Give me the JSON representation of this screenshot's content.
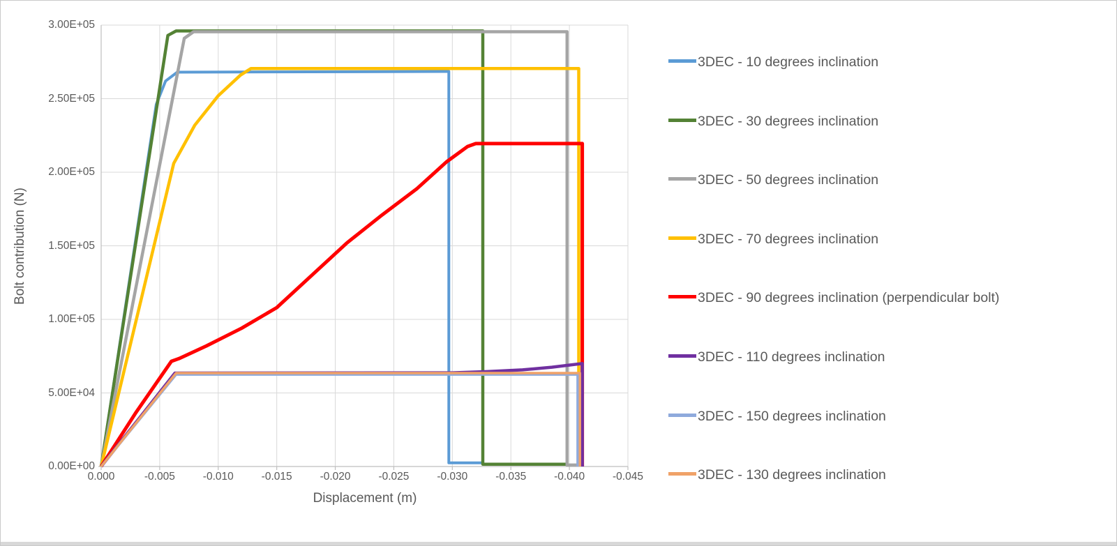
{
  "chart_data": {
    "type": "line",
    "title": "",
    "xlabel": "Displacement (m)",
    "ylabel": "Bolt contribution (N)",
    "xlim": [
      0,
      -0.045
    ],
    "ylim": [
      0,
      300000
    ],
    "grid": true,
    "legend_position": "right",
    "x_ticks": [
      0,
      -0.005,
      -0.01,
      -0.015,
      -0.02,
      -0.025,
      -0.03,
      -0.035,
      -0.04,
      -0.045
    ],
    "x_tick_labels": [
      "0.000",
      "-0.005",
      "-0.010",
      "-0.015",
      "-0.020",
      "-0.025",
      "-0.030",
      "-0.035",
      "-0.040",
      "-0.045"
    ],
    "y_ticks": [
      0,
      50000,
      100000,
      150000,
      200000,
      250000,
      300000
    ],
    "y_tick_labels": [
      "0.00E+00",
      "5.00E+04",
      "1.00E+05",
      "1.50E+05",
      "2.00E+05",
      "2.50E+05",
      "3.00E+05"
    ],
    "colors": {
      "gridline": "#d9d9d9",
      "axis_line": "#bfbfbf",
      "tick_text": "#595959",
      "background": "#ffffff"
    },
    "series": [
      {
        "name": "3DEC - 10 degrees inclination",
        "color": "#5B9BD5",
        "width": 4,
        "points": [
          [
            0,
            0
          ],
          [
            -0.0047,
            246000
          ],
          [
            -0.0055,
            262000
          ],
          [
            -0.0065,
            268000
          ],
          [
            -0.0297,
            268500
          ],
          [
            -0.0297,
            2500
          ],
          [
            -0.0326,
            2500
          ]
        ]
      },
      {
        "name": "3DEC - 30 degrees inclination",
        "color": "#548235",
        "width": 4.5,
        "points": [
          [
            0,
            0
          ],
          [
            -0.0057,
            293000
          ],
          [
            -0.0064,
            296000
          ],
          [
            -0.0326,
            296000
          ],
          [
            -0.0326,
            1500
          ],
          [
            -0.0398,
            1500
          ]
        ]
      },
      {
        "name": "3DEC - 50 degrees inclination",
        "color": "#A5A5A5",
        "width": 4.5,
        "points": [
          [
            0,
            0
          ],
          [
            -0.0071,
            291000
          ],
          [
            -0.0079,
            295500
          ],
          [
            -0.0398,
            295500
          ],
          [
            -0.0398,
            1000
          ],
          [
            -0.0408,
            1000
          ]
        ]
      },
      {
        "name": "3DEC - 70 degrees inclination",
        "color": "#FFC000",
        "width": 4.5,
        "points": [
          [
            0,
            0
          ],
          [
            -0.0062,
            206000
          ],
          [
            -0.008,
            232000
          ],
          [
            -0.01,
            252000
          ],
          [
            -0.0119,
            266000
          ],
          [
            -0.0128,
            270500
          ],
          [
            -0.0408,
            270500
          ],
          [
            -0.0408,
            0
          ]
        ]
      },
      {
        "name": "3DEC - 90 degrees inclination (perpendicular bolt)",
        "color": "#FF0000",
        "width": 5,
        "points": [
          [
            0,
            0
          ],
          [
            -0.003,
            37000
          ],
          [
            -0.006,
            71500
          ],
          [
            -0.0067,
            73500
          ],
          [
            -0.009,
            82000
          ],
          [
            -0.012,
            94000
          ],
          [
            -0.015,
            108000
          ],
          [
            -0.018,
            130000
          ],
          [
            -0.021,
            152000
          ],
          [
            -0.024,
            171000
          ],
          [
            -0.027,
            189000
          ],
          [
            -0.0295,
            207000
          ],
          [
            -0.0313,
            217500
          ],
          [
            -0.032,
            219500
          ],
          [
            -0.0411,
            219500
          ],
          [
            -0.0411,
            0
          ]
        ]
      },
      {
        "name": "3DEC - 110 degrees inclination",
        "color": "#7030A0",
        "width": 4.5,
        "points": [
          [
            0,
            0
          ],
          [
            -0.0063,
            63500
          ],
          [
            -0.03,
            63700
          ],
          [
            -0.033,
            64500
          ],
          [
            -0.036,
            65700
          ],
          [
            -0.0385,
            67500
          ],
          [
            -0.0411,
            70000
          ],
          [
            -0.0411,
            0
          ]
        ]
      },
      {
        "name": "3DEC - 150 degrees inclination",
        "color": "#8FAADC",
        "width": 3.5,
        "points": [
          [
            0,
            0
          ],
          [
            -0.0064,
            62500
          ],
          [
            -0.0407,
            62500
          ],
          [
            -0.0407,
            0
          ]
        ]
      },
      {
        "name": "3DEC - 130 degrees inclination",
        "color": "#F0A268",
        "width": 3.5,
        "points": [
          [
            0,
            0
          ],
          [
            -0.0064,
            63500
          ],
          [
            -0.0409,
            63500
          ],
          [
            -0.0409,
            0
          ]
        ]
      }
    ],
    "legend_first_center_y": 88,
    "legend_item_spacing": 84.6
  }
}
